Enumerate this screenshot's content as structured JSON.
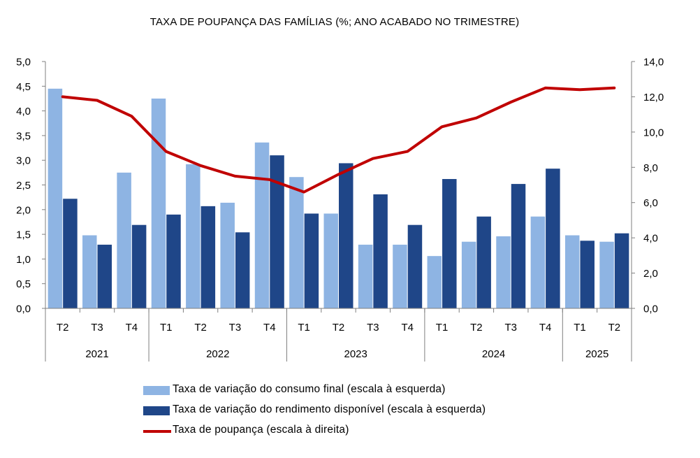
{
  "chart_data": {
    "type": "bar",
    "title": "TAXA DE POUPANÇA DAS FAMÍLIAS (%; ANO ACABADO NO TRIMESTRE)",
    "quarters": [
      "T2",
      "T3",
      "T4",
      "T1",
      "T2",
      "T3",
      "T4",
      "T1",
      "T2",
      "T3",
      "T4",
      "T1",
      "T2",
      "T3",
      "T4",
      "T1",
      "T2"
    ],
    "years": [
      {
        "label": "2021",
        "count": 3
      },
      {
        "label": "2022",
        "count": 4
      },
      {
        "label": "2023",
        "count": 4
      },
      {
        "label": "2024",
        "count": 4
      },
      {
        "label": "2025",
        "count": 2
      }
    ],
    "left_axis": {
      "min": 0,
      "max": 5,
      "step": 0.5,
      "ticks": [
        "0,0",
        "0,5",
        "1,0",
        "1,5",
        "2,0",
        "2,5",
        "3,0",
        "3,5",
        "4,0",
        "4,5",
        "5,0"
      ]
    },
    "right_axis": {
      "min": 0,
      "max": 14,
      "step": 2,
      "ticks": [
        "0,0",
        "2,0",
        "4,0",
        "6,0",
        "8,0",
        "10,0",
        "12,0",
        "14,0"
      ]
    },
    "series": [
      {
        "name": "Taxa de variação do consumo final (escala à esquerda)",
        "kind": "bar",
        "axis": "left",
        "color": "#8eb4e3",
        "values": [
          4.45,
          1.48,
          2.75,
          4.25,
          2.92,
          2.14,
          3.36,
          2.66,
          1.92,
          1.29,
          1.29,
          1.06,
          1.35,
          1.46,
          1.86,
          1.48,
          1.35
        ]
      },
      {
        "name": "Taxa de variação do rendimento disponível (escala à esquerda)",
        "kind": "bar",
        "axis": "left",
        "color": "#1f4688",
        "values": [
          2.22,
          1.29,
          1.69,
          1.9,
          2.07,
          1.54,
          3.1,
          1.92,
          2.94,
          2.31,
          1.69,
          2.62,
          1.86,
          2.52,
          2.83,
          1.37,
          1.52
        ]
      },
      {
        "name": "Taxa de poupança (escala à direita)",
        "kind": "line",
        "axis": "right",
        "color": "#c00000",
        "values": [
          12.0,
          11.8,
          10.9,
          8.9,
          8.1,
          7.5,
          7.3,
          6.6,
          7.6,
          8.5,
          8.9,
          10.3,
          10.8,
          11.7,
          12.5,
          12.4,
          12.5
        ]
      }
    ]
  }
}
